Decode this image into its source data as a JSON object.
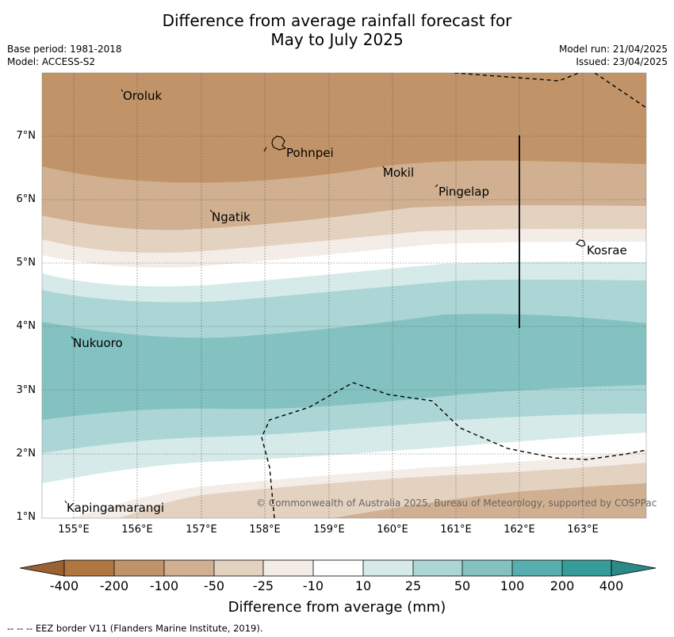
{
  "title": {
    "line1": "Difference from average rainfall forecast for",
    "line2": "May to July 2025"
  },
  "meta": {
    "base_period": "Base period: 1981-2018",
    "model": "Model: ACCESS-S2",
    "model_run": "Model run: 21/04/2025",
    "issued": "Issued: 23/04/2025"
  },
  "map": {
    "lat_labels": [
      "7°N",
      "6°N",
      "5°N",
      "4°N",
      "3°N",
      "2°N",
      "1°N"
    ],
    "lon_labels": [
      "155°E",
      "156°E",
      "157°E",
      "158°E",
      "159°E",
      "160°E",
      "161°E",
      "162°E",
      "163°E"
    ],
    "places": [
      "Oroluk",
      "Pohnpei",
      "Mokil",
      "Pingelap",
      "Ngatik",
      "Kosrae",
      "Nukuoro",
      "Kapingamarangi"
    ],
    "copyright": "© Commonwealth of Australia 2025, Bureau of Meteorology, supported by COSPPac"
  },
  "colorbar": {
    "ticks": [
      "-400",
      "-200",
      "-100",
      "-50",
      "-25",
      "-10",
      "10",
      "25",
      "50",
      "100",
      "200",
      "400"
    ],
    "colors": [
      "#b07840",
      "#c09468",
      "#d0b090",
      "#e4d2c0",
      "#f4ece6",
      "#ffffff",
      "#d6eaea",
      "#acd6d6",
      "#84c2c2",
      "#58aeae",
      "#369c9a",
      "#2a8a88"
    ],
    "title": "Difference from average (mm)"
  },
  "footer": "--  --  -- EEZ border V11 (Flanders Marine Institute, 2019)."
}
